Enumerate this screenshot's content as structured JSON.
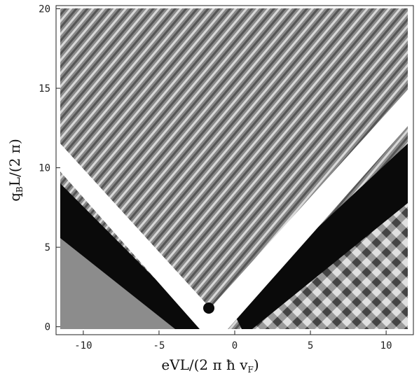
{
  "chart_data": {
    "type": "density",
    "x_label_parts": [
      "eVL/(2 π ħ v",
      "F",
      ")"
    ],
    "y_label_parts": [
      "q",
      "B",
      "L/(2 π)"
    ],
    "xlim": [
      -11.8,
      11.8
    ],
    "xticks": [
      -10,
      -5,
      0,
      5,
      10
    ],
    "ylim": [
      -0.5,
      20.2
    ],
    "yticks": [
      0,
      5,
      10,
      15,
      20
    ]
  }
}
